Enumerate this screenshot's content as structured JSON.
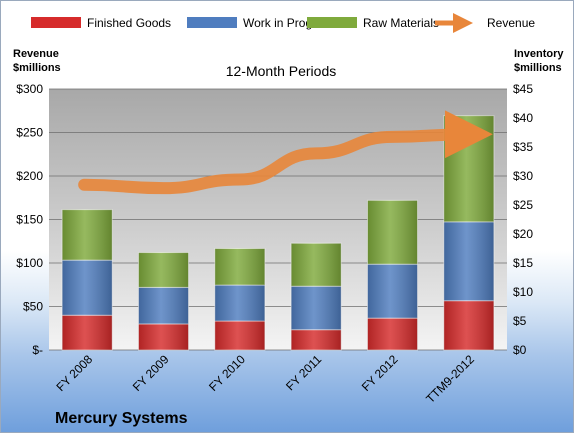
{
  "chart_data": {
    "type": "bar",
    "stacked": true,
    "title": "12-Month Periods",
    "company": "Mercury Systems",
    "categories": [
      "FY 2008",
      "FY 2009",
      "FY 2010",
      "FY 2011",
      "FY 2012",
      "TTM9-2012"
    ],
    "series": [
      {
        "name": "Finished Goods",
        "axis": "right",
        "color": "#d62b2b",
        "values": [
          6.0,
          4.5,
          5.0,
          3.5,
          5.5,
          8.5
        ]
      },
      {
        "name": "Work in Progress",
        "axis": "right",
        "color": "#4f7dbf",
        "values": [
          9.5,
          6.3,
          6.2,
          7.5,
          9.3,
          13.6
        ]
      },
      {
        "name": "Raw Materials",
        "axis": "right",
        "color": "#7faa3c",
        "values": [
          8.7,
          6.0,
          6.3,
          7.4,
          11.0,
          18.3
        ]
      },
      {
        "name": "Revenue",
        "axis": "left",
        "type": "line",
        "color": "#e8863a",
        "values": [
          190,
          186,
          196,
          226,
          245,
          248
        ]
      }
    ],
    "left_axis": {
      "label_line1": "Revenue",
      "label_line2": "$millions",
      "ylim": [
        0,
        300
      ],
      "ticks": [
        "$-",
        "$50",
        "$100",
        "$150",
        "$200",
        "$250",
        "$300"
      ]
    },
    "right_axis": {
      "label_line1": "Inventory",
      "label_line2": "$millions",
      "ylim": [
        0,
        45
      ],
      "ticks": [
        "$0",
        "$5",
        "$10",
        "$15",
        "$20",
        "$25",
        "$30",
        "$35",
        "$40",
        "$45"
      ]
    },
    "grid": true,
    "legend_position": "top"
  }
}
